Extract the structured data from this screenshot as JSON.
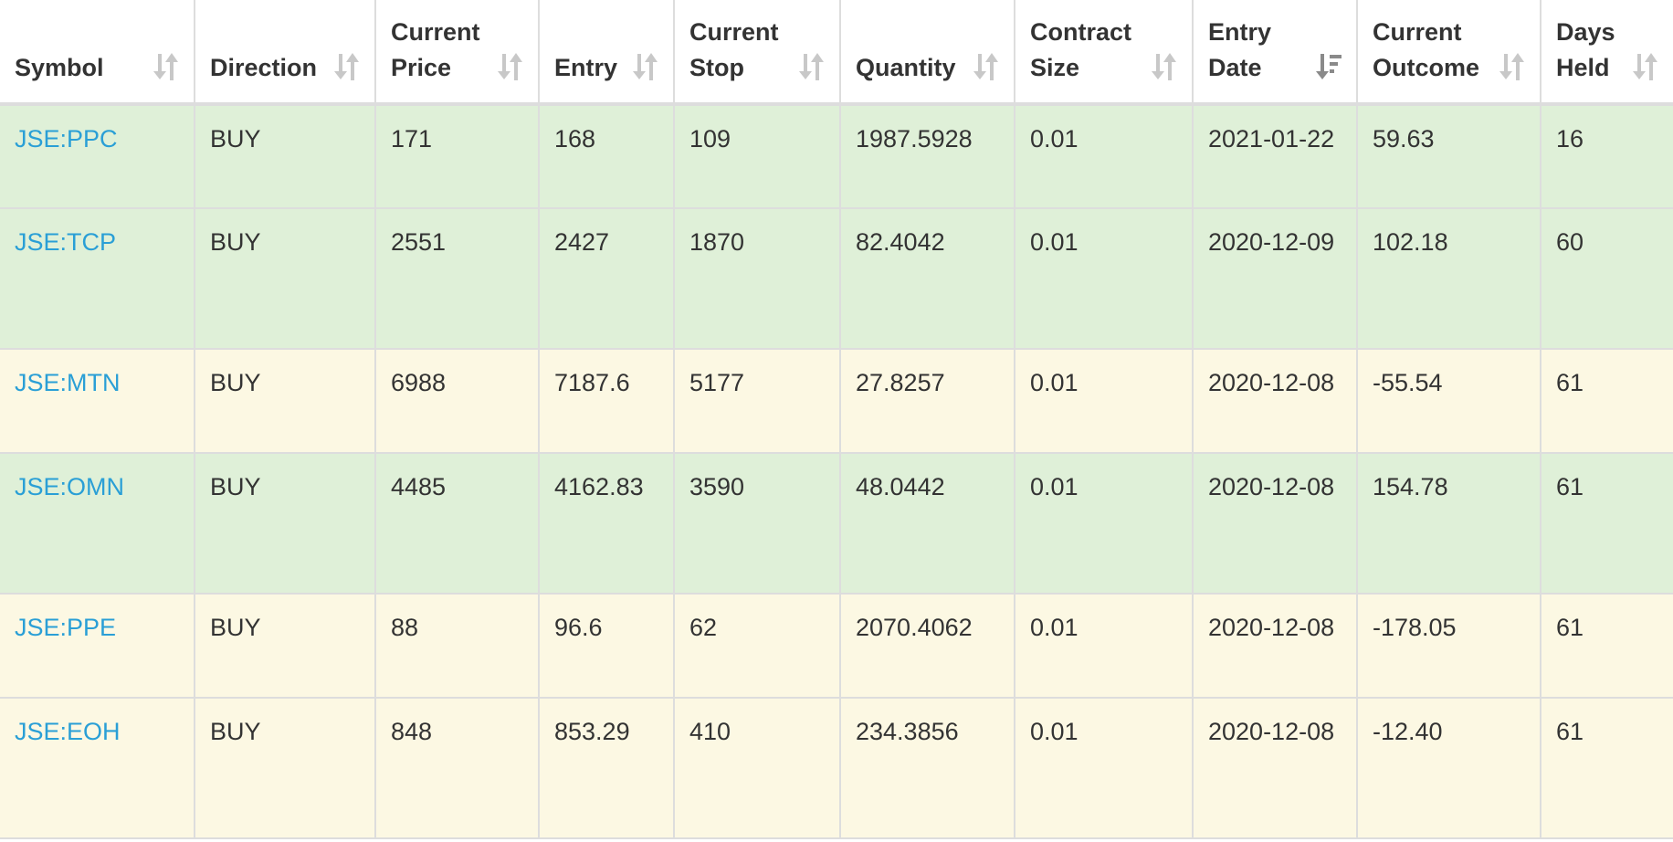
{
  "table": {
    "columns": [
      {
        "key": "symbol",
        "label": "Symbol",
        "sort": "none"
      },
      {
        "key": "direction",
        "label": "Direction",
        "sort": "none"
      },
      {
        "key": "current_price",
        "label": "Current Price",
        "sort": "none"
      },
      {
        "key": "entry",
        "label": "Entry",
        "sort": "none"
      },
      {
        "key": "current_stop",
        "label": "Current Stop",
        "sort": "none"
      },
      {
        "key": "quantity",
        "label": "Quantity",
        "sort": "none"
      },
      {
        "key": "contract_size",
        "label": "Contract Size",
        "sort": "none"
      },
      {
        "key": "entry_date",
        "label": "Entry Date",
        "sort": "desc"
      },
      {
        "key": "current_outcome",
        "label": "Current Outcome",
        "sort": "none"
      },
      {
        "key": "days_held",
        "label": "Days Held",
        "sort": "none"
      }
    ],
    "rows": [
      {
        "status": "win",
        "symbol": "JSE:PPC",
        "direction": "BUY",
        "current_price": "171",
        "entry": "168",
        "current_stop": "109",
        "quantity": "1987.5928",
        "contract_size": "0.01",
        "entry_date": "2021-01-22",
        "current_outcome": "59.63",
        "days_held": "16"
      },
      {
        "status": "win",
        "symbol": "JSE:TCP",
        "direction": "BUY",
        "current_price": "2551",
        "entry": "2427",
        "current_stop": "1870",
        "quantity": "82.4042",
        "contract_size": "0.01",
        "entry_date": "2020-12-09",
        "current_outcome": "102.18",
        "days_held": "60"
      },
      {
        "status": "loss",
        "symbol": "JSE:MTN",
        "direction": "BUY",
        "current_price": "6988",
        "entry": "7187.6",
        "current_stop": "5177",
        "quantity": "27.8257",
        "contract_size": "0.01",
        "entry_date": "2020-12-08",
        "current_outcome": "-55.54",
        "days_held": "61"
      },
      {
        "status": "win",
        "symbol": "JSE:OMN",
        "direction": "BUY",
        "current_price": "4485",
        "entry": "4162.83",
        "current_stop": "3590",
        "quantity": "48.0442",
        "contract_size": "0.01",
        "entry_date": "2020-12-08",
        "current_outcome": "154.78",
        "days_held": "61"
      },
      {
        "status": "loss",
        "symbol": "JSE:PPE",
        "direction": "BUY",
        "current_price": "88",
        "entry": "96.6",
        "current_stop": "62",
        "quantity": "2070.4062",
        "contract_size": "0.01",
        "entry_date": "2020-12-08",
        "current_outcome": "-178.05",
        "days_held": "61"
      },
      {
        "status": "loss",
        "symbol": "JSE:EOH",
        "direction": "BUY",
        "current_price": "848",
        "entry": "853.29",
        "current_stop": "410",
        "quantity": "234.3856",
        "contract_size": "0.01",
        "entry_date": "2020-12-08",
        "current_outcome": "-12.40",
        "days_held": "61"
      }
    ]
  },
  "colors": {
    "win_row_bg": "#dff0d8",
    "loss_row_bg": "#fcf8e3",
    "link": "#2a9fd6",
    "text": "#333333",
    "border": "#dddddd",
    "sort_icon_inactive": "#c8c8c8",
    "sort_icon_active": "#8a8a8a"
  },
  "icons": {
    "sort_none": "sort-both-icon",
    "sort_desc": "sort-descending-icon"
  }
}
